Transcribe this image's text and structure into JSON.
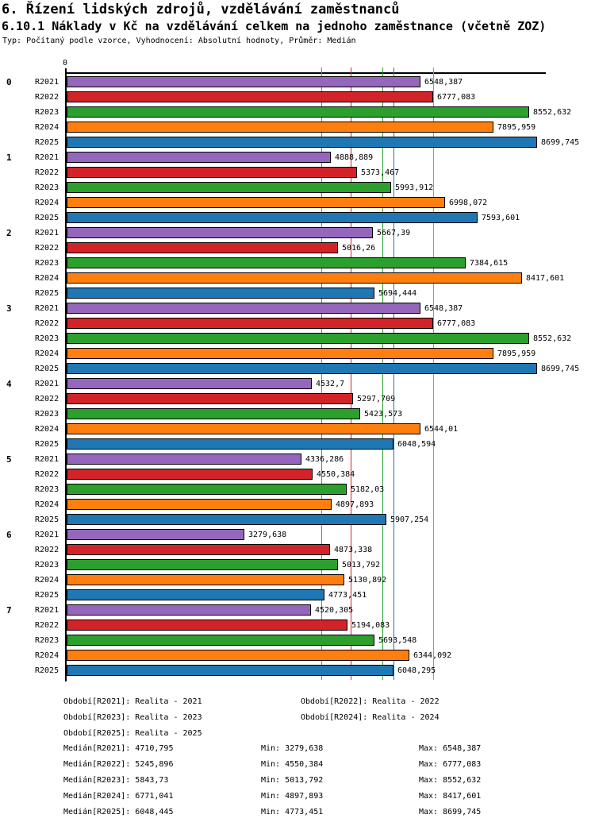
{
  "header": {
    "title1": "6. Řízení lidských zdrojů, vzdělávání zaměstnanců",
    "title2": "6.10.1 Náklady v Kč na vzdělávání celkem na jednoho zaměstnance (včetně ZOZ)",
    "subtitle": "Typ: Počítaný podle vzorce, Vyhodnocení: Absolutní hodnoty, Průměr: Medián"
  },
  "chart_data": {
    "type": "bar",
    "orientation": "horizontal",
    "title": "6.10.1 Náklady v Kč na vzdělávání celkem na jednoho zaměstnance (včetně ZOZ)",
    "x_axis": {
      "min": 0,
      "max": 9580,
      "zero_tick_label": "0",
      "grid": false
    },
    "median_lines_shown": true,
    "series": [
      {
        "name": "R2021",
        "label": "Realita - 2021",
        "color": "#9467bd",
        "median": "4710,795",
        "min": "3279,638",
        "max": "6548,387"
      },
      {
        "name": "R2022",
        "label": "Realita - 2022",
        "color": "#d22328",
        "median": "5245,896",
        "min": "4550,384",
        "max": "6777,083"
      },
      {
        "name": "R2023",
        "label": "Realita - 2023",
        "color": "#2ca02c",
        "median": "5843,73",
        "min": "5013,792",
        "max": "8552,632"
      },
      {
        "name": "R2024",
        "label": "Realita - 2024",
        "color": "#ff7f0e",
        "median": "6771,041",
        "min": "4897,893",
        "max": "8417,601"
      },
      {
        "name": "R2025",
        "label": "Realita - 2025",
        "color": "#1f77b4",
        "median": "6048,445",
        "min": "4773,451",
        "max": "8699,745"
      }
    ],
    "groups": [
      {
        "label": "0",
        "values": [
          "6548,387",
          "6777,083",
          "8552,632",
          "7895,959",
          "8699,745"
        ]
      },
      {
        "label": "1",
        "values": [
          "4888,889",
          "5373,467",
          "5993,912",
          "6998,072",
          "7593,601"
        ]
      },
      {
        "label": "2",
        "values": [
          "5667,39",
          "5016,26",
          "7384,615",
          "8417,601",
          "5694,444"
        ]
      },
      {
        "label": "3",
        "values": [
          "6548,387",
          "6777,083",
          "8552,632",
          "7895,959",
          "8699,745"
        ]
      },
      {
        "label": "4",
        "values": [
          "4532,7",
          "5297,709",
          "5423,573",
          "6544,01",
          "6048,594"
        ]
      },
      {
        "label": "5",
        "values": [
          "4336,286",
          "4550,384",
          "5182,03",
          "4897,893",
          "5907,254"
        ]
      },
      {
        "label": "6",
        "values": [
          "3279,638",
          "4873,338",
          "5013,792",
          "5130,892",
          "4773,451"
        ]
      },
      {
        "label": "7",
        "values": [
          "4520,305",
          "5194,083",
          "5693,548",
          "6344,092",
          "6048,295"
        ]
      }
    ]
  },
  "legend": {
    "rows": [
      [
        "Období[R2021]: Realita - 2021",
        "Období[R2022]: Realita - 2022"
      ],
      [
        "Období[R2023]: Realita - 2023",
        "Období[R2024]: Realita - 2024"
      ],
      [
        "Období[R2025]: Realita - 2025"
      ]
    ]
  },
  "stats": {
    "rows": [
      [
        "Medián[R2021]: 4710,795",
        "Min: 3279,638",
        "Max: 6548,387"
      ],
      [
        "Medián[R2022]: 5245,896",
        "Min: 4550,384",
        "Max: 6777,083"
      ],
      [
        "Medián[R2023]: 5843,73",
        "Min: 5013,792",
        "Max: 8552,632"
      ],
      [
        "Medián[R2024]: 6771,041",
        "Min: 4897,893",
        "Max: 8417,601"
      ],
      [
        "Medián[R2025]: 6048,445",
        "Min: 4773,451",
        "Max: 8699,745"
      ]
    ]
  }
}
